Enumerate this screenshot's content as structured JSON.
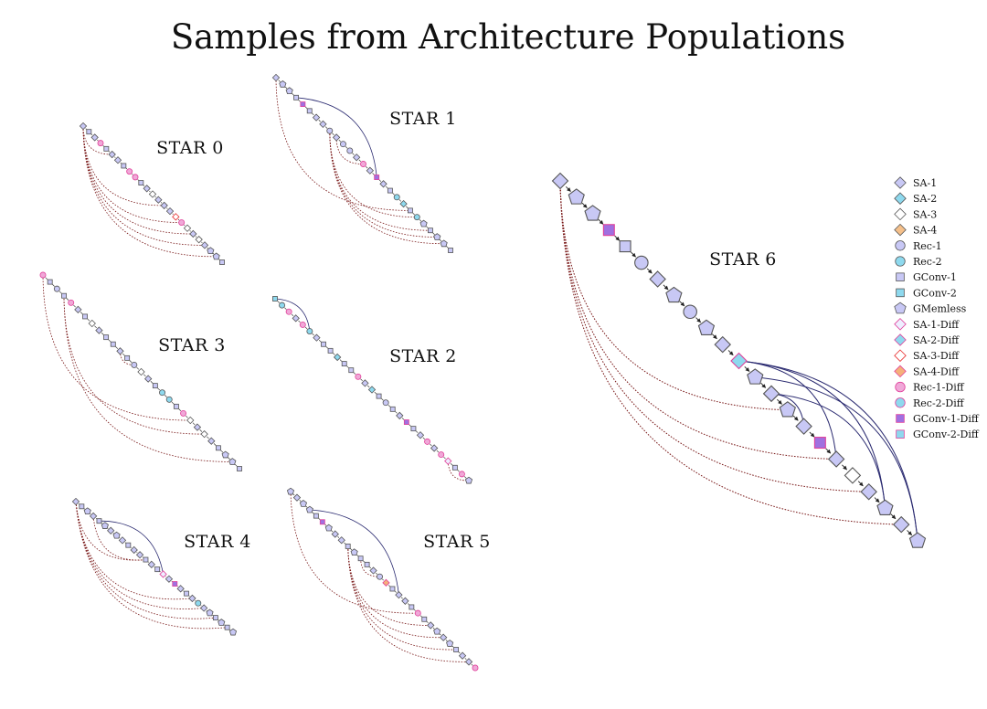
{
  "title": "Samples from Architecture Populations",
  "legend": [
    {
      "label": "SA-1",
      "shape": "diamond",
      "fill": "#c8c8f5",
      "stroke": "#555"
    },
    {
      "label": "SA-2",
      "shape": "diamond",
      "fill": "#8ed9ee",
      "stroke": "#555"
    },
    {
      "label": "SA-3",
      "shape": "diamond",
      "fill": "#ffffff",
      "stroke": "#555"
    },
    {
      "label": "SA-4",
      "shape": "diamond",
      "fill": "#f5c08a",
      "stroke": "#555"
    },
    {
      "label": "Rec-1",
      "shape": "circle",
      "fill": "#c8c8f5",
      "stroke": "#555"
    },
    {
      "label": "Rec-2",
      "shape": "circle",
      "fill": "#8ed9ee",
      "stroke": "#555"
    },
    {
      "label": "GConv-1",
      "shape": "square",
      "fill": "#c8c8f5",
      "stroke": "#555"
    },
    {
      "label": "GConv-2",
      "shape": "square",
      "fill": "#8ed9ee",
      "stroke": "#555"
    },
    {
      "label": "GMemless",
      "shape": "pentagon",
      "fill": "#c8c8f5",
      "stroke": "#555"
    },
    {
      "label": "SA-1-Diff",
      "shape": "diamond",
      "fill": "#eeeeff",
      "stroke": "#e0409a"
    },
    {
      "label": "SA-2-Diff",
      "shape": "diamond",
      "fill": "#8ed9ee",
      "stroke": "#e0409a"
    },
    {
      "label": "SA-3-Diff",
      "shape": "diamond",
      "fill": "#ffffff",
      "stroke": "#e83030"
    },
    {
      "label": "SA-4-Diff",
      "shape": "diamond",
      "fill": "#f5b07a",
      "stroke": "#e0409a"
    },
    {
      "label": "Rec-1-Diff",
      "shape": "circle",
      "fill": "#f0a8d8",
      "stroke": "#e0409a"
    },
    {
      "label": "Rec-2-Diff",
      "shape": "circle",
      "fill": "#8ed9ee",
      "stroke": "#e0409a"
    },
    {
      "label": "GConv-1-Diff",
      "shape": "square",
      "fill": "#a070e0",
      "stroke": "#e0409a"
    },
    {
      "label": "GConv-2-Diff",
      "shape": "square",
      "fill": "#8ed9ee",
      "stroke": "#e0409a"
    }
  ],
  "stars": [
    {
      "label": "STAR 0",
      "nodes": [
        "SA-1",
        "GConv-1",
        "SA-1",
        "Rec-1-Diff",
        "GConv-1",
        "SA-1",
        "SA-1",
        "GConv-1",
        "Rec-1-Diff",
        "Rec-1-Diff",
        "GConv-1",
        "SA-1",
        "SA-3",
        "SA-1",
        "SA-1",
        "SA-1",
        "SA-3-Diff",
        "Rec-1-Diff",
        "SA-3",
        "SA-1",
        "SA-3",
        "SA-1",
        "GMemless",
        "GMemless",
        "GConv-1"
      ],
      "arcs": [
        {
          "from": 0,
          "to": 5,
          "style": "dotted"
        },
        {
          "from": 0,
          "to": 14,
          "style": "dotted"
        },
        {
          "from": 0,
          "to": 17,
          "style": "dotted"
        },
        {
          "from": 0,
          "to": 19,
          "style": "dotted"
        },
        {
          "from": 0,
          "to": 21,
          "style": "dotted"
        },
        {
          "from": 0,
          "to": 23,
          "style": "dotted"
        }
      ]
    },
    {
      "label": "STAR 1",
      "nodes": [
        "SA-1",
        "GMemless",
        "GMemless",
        "GConv-1",
        "GConv-1-Diff",
        "GConv-1",
        "SA-1",
        "SA-1",
        "Rec-1",
        "SA-1",
        "Rec-1",
        "Rec-1",
        "SA-1",
        "Rec-1-Diff",
        "SA-1",
        "GConv-1-Diff",
        "SA-1",
        "GConv-1",
        "Rec-2",
        "SA-2",
        "GConv-1",
        "Rec-2",
        "GMemless",
        "GConv-1",
        "GMemless",
        "GMemless",
        "GConv-1"
      ],
      "arcs": [
        {
          "from": 3,
          "to": 15,
          "style": "solid"
        },
        {
          "from": 0,
          "to": 20,
          "style": "dotted"
        },
        {
          "from": 9,
          "to": 13,
          "style": "dotted"
        },
        {
          "from": 8,
          "to": 21,
          "style": "dotted"
        },
        {
          "from": 8,
          "to": 23,
          "style": "dotted"
        },
        {
          "from": 8,
          "to": 24,
          "style": "dotted"
        },
        {
          "from": 8,
          "to": 25,
          "style": "dotted"
        }
      ]
    },
    {
      "label": "STAR 2",
      "nodes": [
        "GConv-2",
        "Rec-2",
        "Rec-1-Diff",
        "SA-1",
        "Rec-1-Diff",
        "Rec-2",
        "SA-1",
        "GConv-1",
        "GConv-1",
        "SA-2",
        "GConv-1",
        "GConv-1",
        "Rec-1-Diff",
        "SA-1",
        "SA-2",
        "GConv-1",
        "Rec-1",
        "GConv-1",
        "SA-1",
        "GConv-1-Diff",
        "GConv-1",
        "SA-1",
        "Rec-1-Diff",
        "SA-1",
        "Rec-1-Diff",
        "SA-1-Diff",
        "GConv-1",
        "Rec-1-Diff",
        "GMemless"
      ],
      "arcs": [
        {
          "from": 0,
          "to": 5,
          "style": "solid"
        },
        {
          "from": 25,
          "to": 28,
          "style": "dotted"
        }
      ]
    },
    {
      "label": "STAR 3",
      "nodes": [
        "Rec-1-Diff",
        "GConv-1",
        "Rec-1",
        "GConv-1",
        "Rec-1-Diff",
        "SA-1",
        "GConv-1",
        "SA-3",
        "SA-1",
        "GConv-1",
        "GConv-1",
        "SA-1",
        "GConv-1",
        "Rec-1",
        "SA-3",
        "SA-1",
        "GConv-1",
        "Rec-2",
        "Rec-2",
        "GConv-1",
        "Rec-1-Diff",
        "SA-3",
        "SA-1",
        "SA-3",
        "SA-1",
        "GConv-1",
        "GMemless",
        "GMemless",
        "GConv-1"
      ],
      "arcs": [
        {
          "from": 0,
          "to": 21,
          "style": "dotted"
        },
        {
          "from": 11,
          "to": 13,
          "style": "dotted"
        },
        {
          "from": 3,
          "to": 23,
          "style": "dotted"
        },
        {
          "from": 3,
          "to": 27,
          "style": "dotted"
        }
      ]
    },
    {
      "label": "STAR 4",
      "nodes": [
        "SA-1",
        "GConv-1",
        "GMemless",
        "SA-1",
        "GConv-1",
        "GMemless",
        "SA-1",
        "GMemless",
        "SA-1",
        "GConv-1",
        "SA-1",
        "SA-1",
        "GConv-1",
        "SA-1",
        "GConv-1",
        "SA-1-Diff",
        "SA-1",
        "GConv-1-Diff",
        "SA-1",
        "GConv-1",
        "SA-1",
        "Rec-2",
        "SA-1",
        "GMemless",
        "GConv-1",
        "GMemless",
        "GConv-1",
        "GMemless"
      ],
      "arcs": [
        {
          "from": 4,
          "to": 15,
          "style": "solid"
        },
        {
          "from": 0,
          "to": 12,
          "style": "dotted"
        },
        {
          "from": 3,
          "to": 12,
          "style": "dotted"
        },
        {
          "from": 0,
          "to": 20,
          "style": "dotted"
        },
        {
          "from": 0,
          "to": 22,
          "style": "dotted"
        },
        {
          "from": 0,
          "to": 24,
          "style": "dotted"
        },
        {
          "from": 0,
          "to": 26,
          "style": "dotted"
        }
      ]
    },
    {
      "label": "STAR 5",
      "nodes": [
        "GMemless",
        "SA-1",
        "GMemless",
        "GMemless",
        "GConv-1",
        "GConv-1-Diff",
        "GMemless",
        "SA-1",
        "SA-1",
        "GConv-1",
        "GMemless",
        "GConv-1",
        "GConv-1",
        "SA-1",
        "Rec-1",
        "SA-4-Diff",
        "GConv-1",
        "SA-1",
        "SA-1",
        "GConv-1",
        "Rec-1-Diff",
        "GConv-1",
        "SA-1",
        "GMemless",
        "SA-1",
        "GMemless",
        "GConv-1",
        "SA-1",
        "SA-1",
        "Rec-1-Diff"
      ],
      "arcs": [
        {
          "from": 3,
          "to": 17,
          "style": "solid"
        },
        {
          "from": 0,
          "to": 20,
          "style": "dotted"
        },
        {
          "from": 11,
          "to": 14,
          "style": "dotted"
        },
        {
          "from": 9,
          "to": 22,
          "style": "dotted"
        },
        {
          "from": 9,
          "to": 24,
          "style": "dotted"
        },
        {
          "from": 9,
          "to": 26,
          "style": "dotted"
        },
        {
          "from": 9,
          "to": 28,
          "style": "dotted"
        }
      ]
    },
    {
      "label": "STAR 6",
      "nodes": [
        "SA-1",
        "GMemless",
        "GMemless",
        "GConv-1-Diff",
        "GConv-1",
        "Rec-1",
        "SA-1",
        "GMemless",
        "Rec-1",
        "GMemless",
        "SA-1",
        "SA-2-Diff",
        "GMemless",
        "SA-1",
        "GMemless",
        "SA-1",
        "GConv-1-Diff",
        "SA-1",
        "SA-3",
        "SA-1",
        "GMemless",
        "SA-1",
        "GMemless"
      ],
      "arcs": [
        {
          "from": 0,
          "to": 14,
          "style": "dotted"
        },
        {
          "from": 0,
          "to": 17,
          "style": "dotted"
        },
        {
          "from": 0,
          "to": 19,
          "style": "dotted"
        },
        {
          "from": 0,
          "to": 21,
          "style": "dotted"
        },
        {
          "from": 11,
          "to": 17,
          "style": "solid"
        },
        {
          "from": 11,
          "to": 20,
          "style": "solid"
        },
        {
          "from": 11,
          "to": 22,
          "style": "solid"
        },
        {
          "from": 12,
          "to": 22,
          "style": "solid"
        },
        {
          "from": 13,
          "to": 15,
          "style": "solid"
        },
        {
          "from": 13,
          "to": 20,
          "style": "solid"
        }
      ]
    }
  ]
}
